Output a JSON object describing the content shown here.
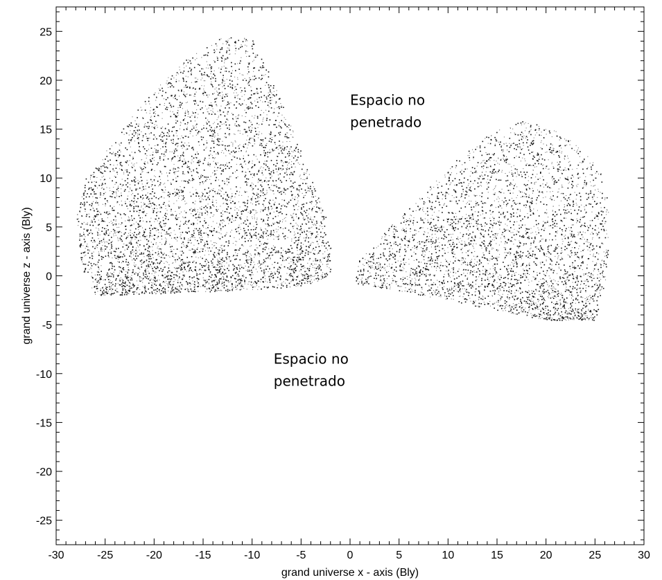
{
  "chart_data": {
    "type": "scatter",
    "title": "",
    "xlabel": "grand universe x - axis (Bly)",
    "ylabel": "grand universe z - axis (Bly)",
    "xlim": [
      -30,
      30
    ],
    "ylim": [
      -27.5,
      27.5
    ],
    "xticks": [
      -30,
      -25,
      -20,
      -15,
      -10,
      -5,
      0,
      5,
      10,
      15,
      20,
      25,
      30
    ],
    "yticks": [
      -25,
      -20,
      -15,
      -10,
      -5,
      0,
      5,
      10,
      15,
      20,
      25
    ],
    "grid": false,
    "legend": "none",
    "marker_color": "#000000",
    "annotations": [
      {
        "lines": [
          "Espacio no",
          "penetrado"
        ],
        "x": 0,
        "y": 17.5
      },
      {
        "lines": [
          "Espacio no",
          "penetrado"
        ],
        "x": -7.8,
        "y": -9
      }
    ],
    "clusters": [
      {
        "region": "left lobe",
        "approx_point_count": 5200,
        "z_floor": [
          [
            -26,
            -2.0
          ],
          [
            -20,
            -1.8
          ],
          [
            -12,
            -1.5
          ],
          [
            -6,
            -1.2
          ],
          [
            -3,
            -0.6
          ],
          [
            -2,
            0.2
          ]
        ],
        "outline": [
          [
            -26,
            -2.0
          ],
          [
            -27.5,
            1
          ],
          [
            -28,
            6
          ],
          [
            -27,
            10
          ],
          [
            -24,
            14
          ],
          [
            -21,
            18
          ],
          [
            -17,
            22
          ],
          [
            -13,
            24.5
          ],
          [
            -10,
            24.5
          ],
          [
            -7.5,
            19
          ],
          [
            -5.5,
            14
          ],
          [
            -4,
            10
          ],
          [
            -2.5,
            6
          ],
          [
            -2,
            3
          ],
          [
            -2,
            0.2
          ],
          [
            -3,
            -0.6
          ],
          [
            -6,
            -1.2
          ],
          [
            -12,
            -1.5
          ],
          [
            -20,
            -1.8
          ]
        ]
      },
      {
        "region": "right lobe",
        "approx_point_count": 3600,
        "z_floor": [
          [
            1,
            0
          ],
          [
            5,
            -1.5
          ],
          [
            10,
            -2.5
          ],
          [
            15,
            -3.5
          ],
          [
            20,
            -4.5
          ],
          [
            24,
            -5.0
          ]
        ],
        "outline": [
          [
            0.5,
            -0.8
          ],
          [
            0.8,
            1.5
          ],
          [
            3,
            4
          ],
          [
            7,
            8
          ],
          [
            11,
            12
          ],
          [
            14,
            14.5
          ],
          [
            18,
            16
          ],
          [
            23,
            14
          ],
          [
            26,
            10
          ],
          [
            26.5,
            5
          ],
          [
            26,
            -1
          ],
          [
            25,
            -4.5
          ],
          [
            20,
            -4.5
          ],
          [
            15,
            -3.5
          ],
          [
            10,
            -2.5
          ],
          [
            5,
            -1.5
          ]
        ]
      }
    ]
  }
}
